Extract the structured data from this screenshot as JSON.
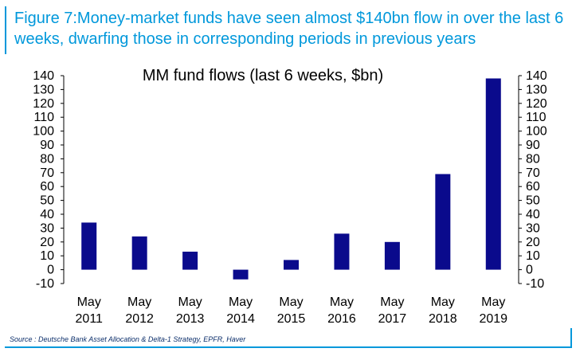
{
  "caption": {
    "line1": "Figure 7:Money-market funds have seen almost $140bn flow in over the last 6",
    "line2": "weeks, dwarfing those in corresponding periods in previous years"
  },
  "source": "Source : Deutsche Bank Asset Allocation & Delta-1 Strategy, EPFR, Haver",
  "colors": {
    "accent": "#0098db",
    "bar": "#0a0a8c"
  },
  "chart_data": {
    "type": "bar",
    "title": "MM fund flows (last 6 weeks, $bn)",
    "categories": [
      {
        "month": "May",
        "year": "2011"
      },
      {
        "month": "May",
        "year": "2012"
      },
      {
        "month": "May",
        "year": "2013"
      },
      {
        "month": "May",
        "year": "2014"
      },
      {
        "month": "May",
        "year": "2015"
      },
      {
        "month": "May",
        "year": "2016"
      },
      {
        "month": "May",
        "year": "2017"
      },
      {
        "month": "May",
        "year": "2018"
      },
      {
        "month": "May",
        "year": "2019"
      }
    ],
    "values": [
      34,
      24,
      13,
      -7,
      7,
      26,
      20,
      69,
      138
    ],
    "ylim": [
      -10,
      140
    ],
    "yticks": [
      "-10",
      "0",
      "10",
      "20",
      "30",
      "40",
      "50",
      "60",
      "70",
      "80",
      "90",
      "100",
      "110",
      "120",
      "130",
      "140"
    ],
    "xlabel": "",
    "ylabel": "",
    "grid": false
  }
}
